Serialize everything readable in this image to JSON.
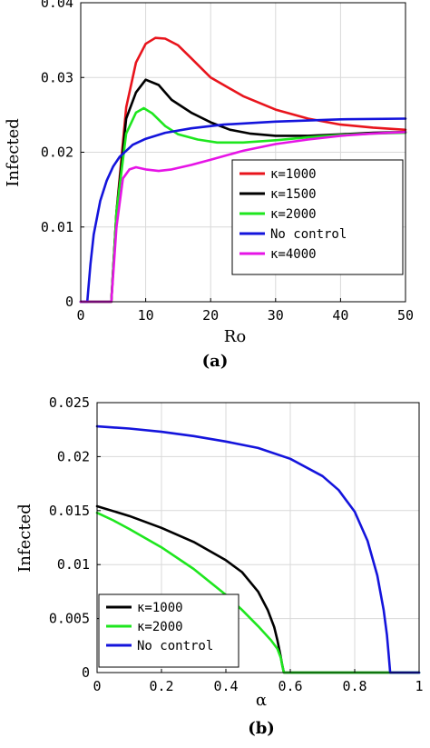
{
  "chart_data": [
    {
      "type": "line",
      "panel_label": "(a)",
      "xlabel": "Ro",
      "ylabel": "Infected",
      "xlim": [
        0,
        50
      ],
      "ylim": [
        0,
        0.04
      ],
      "xticks": [
        "0",
        "10",
        "20",
        "30",
        "40",
        "50"
      ],
      "yticks": [
        "0",
        "0.01",
        "0.02",
        "0.03",
        "0.04"
      ],
      "grid": true,
      "legend_position": "lower-right",
      "series": [
        {
          "name": "κ=1000",
          "color": "#e8141c",
          "x": [
            0,
            4.7,
            5.5,
            7,
            8.5,
            10,
            11.5,
            13,
            15,
            17,
            20,
            25,
            30,
            35,
            40,
            45,
            50
          ],
          "y": [
            0,
            0,
            0.012,
            0.026,
            0.032,
            0.0345,
            0.0353,
            0.0352,
            0.0343,
            0.0326,
            0.03,
            0.0275,
            0.0257,
            0.0245,
            0.0237,
            0.0233,
            0.023
          ]
        },
        {
          "name": "κ=1500",
          "color": "#000000",
          "x": [
            0,
            4.7,
            5.5,
            7,
            8.5,
            10,
            12,
            14,
            17,
            20,
            23,
            26,
            30,
            35,
            40,
            45,
            50
          ],
          "y": [
            0,
            0,
            0.012,
            0.0245,
            0.028,
            0.0297,
            0.029,
            0.027,
            0.0253,
            0.024,
            0.023,
            0.0225,
            0.0222,
            0.0222,
            0.0224,
            0.0226,
            0.0227
          ]
        },
        {
          "name": "κ=2000",
          "color": "#1ee61e",
          "x": [
            0,
            4.7,
            5.5,
            7,
            8.5,
            9.7,
            11,
            13,
            15,
            18,
            21,
            25,
            30,
            35,
            40,
            45,
            50
          ],
          "y": [
            0,
            0,
            0.012,
            0.0225,
            0.0253,
            0.0259,
            0.0252,
            0.0235,
            0.0224,
            0.0217,
            0.0213,
            0.0213,
            0.0216,
            0.022,
            0.0223,
            0.0225,
            0.0226
          ]
        },
        {
          "name": "No control",
          "color": "#1414dc",
          "x": [
            0,
            1,
            1.5,
            2,
            3,
            4,
            5,
            6,
            8,
            10,
            13,
            17,
            22,
            30,
            40,
            50
          ],
          "y": [
            0,
            0,
            0.005,
            0.009,
            0.0135,
            0.0162,
            0.0181,
            0.0194,
            0.021,
            0.0218,
            0.0226,
            0.0232,
            0.0237,
            0.0241,
            0.0244,
            0.0245
          ]
        },
        {
          "name": "κ=4000",
          "color": "#e614e6",
          "x": [
            0,
            4.7,
            5.5,
            6.5,
            7.5,
            8.5,
            10,
            12,
            14,
            17,
            20,
            25,
            30,
            35,
            40,
            45,
            50
          ],
          "y": [
            0,
            0,
            0.01,
            0.0165,
            0.0177,
            0.018,
            0.0177,
            0.0175,
            0.0177,
            0.0183,
            0.019,
            0.0202,
            0.0211,
            0.0217,
            0.0222,
            0.0225,
            0.0227
          ]
        }
      ]
    },
    {
      "type": "line",
      "panel_label": "(b)",
      "xlabel": "α",
      "ylabel": "Infected",
      "xlim": [
        0,
        1
      ],
      "ylim": [
        0,
        0.025
      ],
      "xticks": [
        "0",
        "0.2",
        "0.4",
        "0.6",
        "0.8",
        "1"
      ],
      "yticks": [
        "0",
        "0.005",
        "0.01",
        "0.015",
        "0.02",
        "0.025"
      ],
      "grid": true,
      "legend_position": "lower-left",
      "series": [
        {
          "name": "κ=1000",
          "color": "#000000",
          "x": [
            0,
            0.1,
            0.2,
            0.3,
            0.4,
            0.45,
            0.5,
            0.53,
            0.55,
            0.56,
            0.57,
            0.575,
            0.58,
            0.6,
            0.8,
            1
          ],
          "y": [
            0.0154,
            0.0145,
            0.0134,
            0.0121,
            0.0104,
            0.0093,
            0.0075,
            0.0058,
            0.0042,
            0.003,
            0.0015,
            0.0007,
            0,
            0,
            0,
            0
          ]
        },
        {
          "name": "κ=2000",
          "color": "#1ee61e",
          "x": [
            0,
            0.05,
            0.1,
            0.2,
            0.3,
            0.4,
            0.45,
            0.5,
            0.54,
            0.56,
            0.57,
            0.575,
            0.58,
            0.6,
            0.8,
            1
          ],
          "y": [
            0.0148,
            0.0141,
            0.0133,
            0.0116,
            0.0096,
            0.0072,
            0.0058,
            0.0043,
            0.003,
            0.0022,
            0.0014,
            0.0007,
            0,
            0,
            0,
            0
          ]
        },
        {
          "name": "No control",
          "color": "#1414dc",
          "x": [
            0,
            0.1,
            0.2,
            0.3,
            0.4,
            0.5,
            0.6,
            0.7,
            0.75,
            0.8,
            0.84,
            0.87,
            0.89,
            0.9,
            0.905,
            0.91,
            1
          ],
          "y": [
            0.0228,
            0.0226,
            0.0223,
            0.0219,
            0.0214,
            0.0208,
            0.0198,
            0.0182,
            0.0169,
            0.0149,
            0.0122,
            0.009,
            0.0058,
            0.0035,
            0.0018,
            0,
            0
          ]
        }
      ]
    }
  ]
}
